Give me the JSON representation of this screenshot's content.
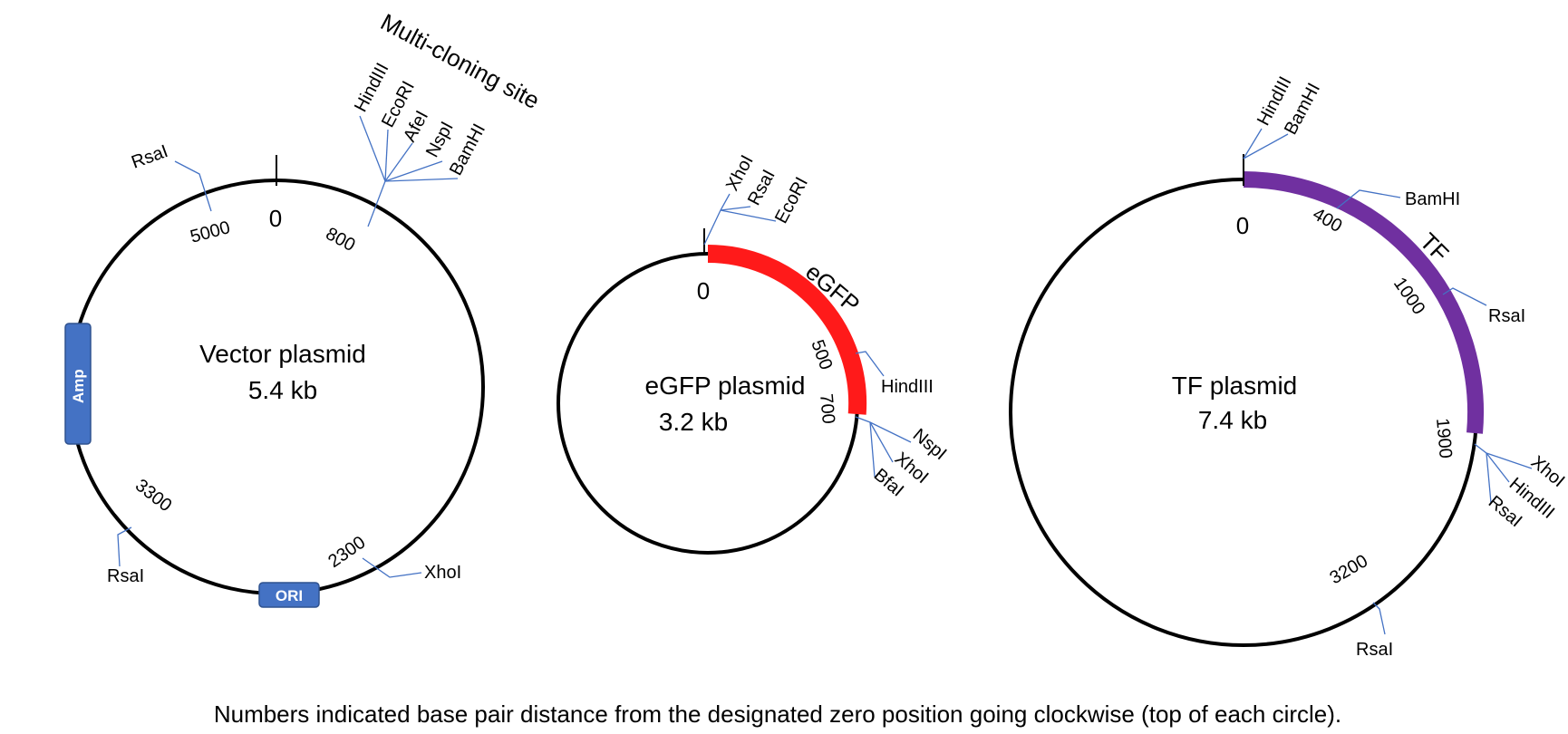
{
  "vector": {
    "name": "Vector plasmid",
    "size": "5.4 kb",
    "zero": "0",
    "mcs_label": "Multi-cloning site",
    "mcs_enzymes": [
      "HindIII",
      "EcoRI",
      "AfeI",
      "NspI",
      "BamHI"
    ],
    "mcs_pos": "800",
    "pos_5000": "5000",
    "rsa1": "RsaI",
    "pos_3300": "3300",
    "rsa2": "RsaI",
    "pos_2300": "2300",
    "xho": "XhoI",
    "amp": "Amp",
    "ori": "ORI",
    "box_color": "#4472C4"
  },
  "egfp": {
    "name": "eGFP plasmid",
    "size": "3.2 kb",
    "zero": "0",
    "gene": "eGFP",
    "gene_color": "#FF1A1A",
    "top_enzymes": [
      "XhoI",
      "RsaI",
      "EcoRI"
    ],
    "pos_500": "500",
    "hind": "HindIII",
    "pos_700": "700",
    "bottom_enzymes": [
      "NspI",
      "XhoI",
      "BfaI"
    ]
  },
  "tf": {
    "name": "TF plasmid",
    "size": "7.4 kb",
    "zero": "0",
    "gene": "TF",
    "gene_color": "#7030A0",
    "top_enzymes": [
      "HindIII",
      "BamHI"
    ],
    "pos_400": "400",
    "bam": "BamHI",
    "pos_1000": "1000",
    "rsa1": "RsaI",
    "pos_1900": "1900",
    "right_enzymes": [
      "XhoI",
      "HindIII",
      "RsaI"
    ],
    "pos_3200": "3200",
    "rsa2": "RsaI"
  },
  "caption": "Numbers indicated base pair distance from the designated zero position going clockwise (top of each circle)."
}
